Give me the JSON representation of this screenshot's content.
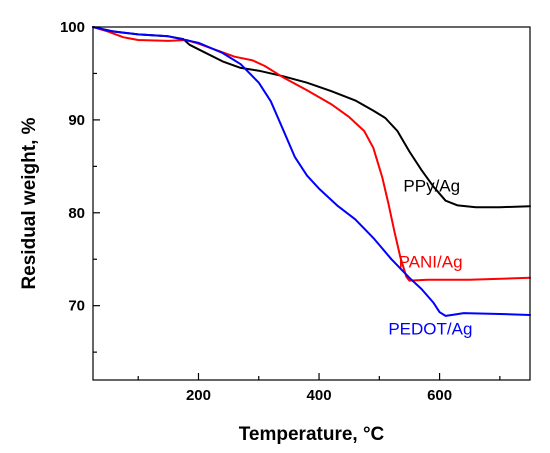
{
  "chart_data": {
    "type": "line",
    "title": "",
    "xlabel": "Temperature, °C",
    "ylabel": "Residual weight, %",
    "xlim": [
      25,
      750
    ],
    "ylim": [
      62,
      100
    ],
    "x_ticks": [
      200,
      400,
      600
    ],
    "y_ticks": [
      70,
      80,
      90,
      100
    ],
    "grid": false,
    "legend": "inline labels",
    "series": [
      {
        "name": "PPy/Ag",
        "color": "#000000",
        "label_at": [
          540,
          82.3
        ],
        "points": [
          [
            25,
            100
          ],
          [
            60,
            99.5
          ],
          [
            100,
            99.2
          ],
          [
            150,
            99.0
          ],
          [
            175,
            98.7
          ],
          [
            185,
            98.1
          ],
          [
            200,
            97.6
          ],
          [
            240,
            96.3
          ],
          [
            270,
            95.6
          ],
          [
            300,
            95.3
          ],
          [
            340,
            94.7
          ],
          [
            380,
            94.0
          ],
          [
            420,
            93.1
          ],
          [
            460,
            92.1
          ],
          [
            490,
            91.0
          ],
          [
            510,
            90.2
          ],
          [
            530,
            88.8
          ],
          [
            550,
            86.6
          ],
          [
            570,
            84.6
          ],
          [
            590,
            82.8
          ],
          [
            610,
            81.3
          ],
          [
            630,
            80.8
          ],
          [
            660,
            80.6
          ],
          [
            700,
            80.6
          ],
          [
            750,
            80.7
          ]
        ]
      },
      {
        "name": "PANI/Ag",
        "color": "#ff0000",
        "label_at": [
          532,
          74.1
        ],
        "points": [
          [
            25,
            100
          ],
          [
            50,
            99.5
          ],
          [
            75,
            98.9
          ],
          [
            100,
            98.6
          ],
          [
            150,
            98.5
          ],
          [
            180,
            98.6
          ],
          [
            200,
            98.2
          ],
          [
            230,
            97.5
          ],
          [
            260,
            96.8
          ],
          [
            290,
            96.4
          ],
          [
            310,
            95.8
          ],
          [
            340,
            94.6
          ],
          [
            380,
            93.2
          ],
          [
            420,
            91.7
          ],
          [
            450,
            90.3
          ],
          [
            475,
            88.8
          ],
          [
            490,
            87.0
          ],
          [
            505,
            83.8
          ],
          [
            515,
            81.0
          ],
          [
            525,
            78.0
          ],
          [
            535,
            75.2
          ],
          [
            545,
            73.1
          ],
          [
            550,
            72.7
          ],
          [
            580,
            72.8
          ],
          [
            650,
            72.8
          ],
          [
            750,
            73.0
          ]
        ]
      },
      {
        "name": "PEDOT/Ag",
        "color": "#0000ff",
        "label_at": [
          515,
          66.9
        ],
        "points": [
          [
            25,
            100
          ],
          [
            50,
            99.6
          ],
          [
            100,
            99.2
          ],
          [
            150,
            99.0
          ],
          [
            200,
            98.3
          ],
          [
            240,
            97.2
          ],
          [
            270,
            96.0
          ],
          [
            300,
            94.0
          ],
          [
            320,
            92.0
          ],
          [
            340,
            89.0
          ],
          [
            360,
            86.0
          ],
          [
            380,
            84.0
          ],
          [
            400,
            82.6
          ],
          [
            430,
            80.8
          ],
          [
            460,
            79.3
          ],
          [
            490,
            77.3
          ],
          [
            520,
            75.0
          ],
          [
            550,
            73.0
          ],
          [
            570,
            71.8
          ],
          [
            590,
            70.3
          ],
          [
            600,
            69.3
          ],
          [
            610,
            68.9
          ],
          [
            620,
            69.0
          ],
          [
            640,
            69.2
          ],
          [
            700,
            69.1
          ],
          [
            750,
            69.0
          ]
        ]
      }
    ]
  }
}
